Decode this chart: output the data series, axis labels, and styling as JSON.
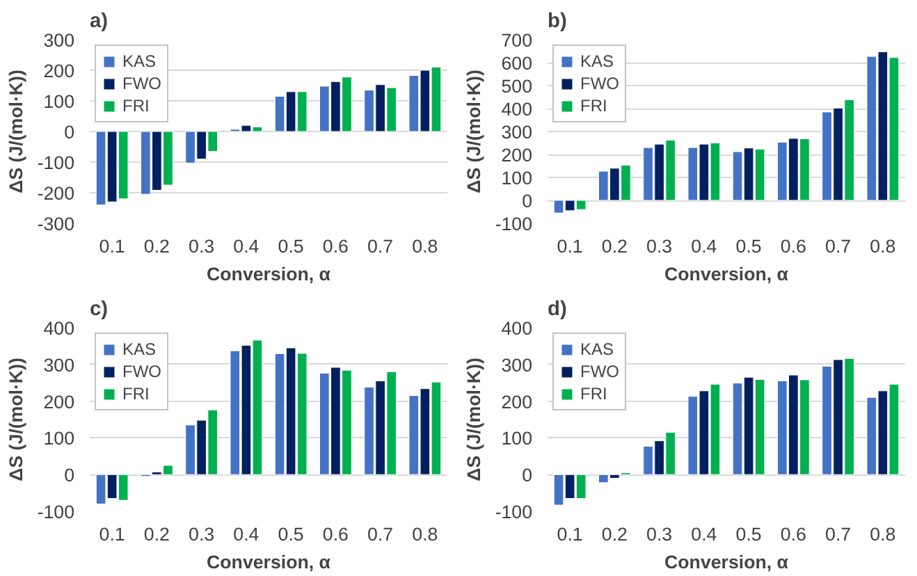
{
  "chart_data": [
    {
      "type": "bar",
      "title": "a)",
      "xlabel": "Conversion, α",
      "ylabel": "ΔS (J/(mol·K))",
      "categories": [
        "0.1",
        "0.2",
        "0.3",
        "0.4",
        "0.5",
        "0.6",
        "0.7",
        "0.8"
      ],
      "ylim": [
        -300,
        300
      ],
      "yticks": [
        -300,
        -200,
        -100,
        0,
        100,
        200,
        300
      ],
      "grid": "y",
      "legend": "top left",
      "series": [
        {
          "name": "KAS",
          "color": "#4472c4",
          "values": [
            -240,
            -205,
            -103,
            7,
            115,
            148,
            135,
            183
          ]
        },
        {
          "name": "FWO",
          "color": "#002060",
          "values": [
            -230,
            -192,
            -90,
            20,
            130,
            163,
            153,
            200
          ]
        },
        {
          "name": "FRI",
          "color": "#00b050",
          "values": [
            -220,
            -175,
            -65,
            15,
            130,
            178,
            143,
            210
          ]
        }
      ]
    },
    {
      "type": "bar",
      "title": "b)",
      "xlabel": "Conversion, α",
      "ylabel": "ΔS (J/(mol·K))",
      "categories": [
        "0.1",
        "0.2",
        "0.3",
        "0.4",
        "0.5",
        "0.6",
        "0.7",
        "0.8"
      ],
      "ylim": [
        -100,
        700
      ],
      "yticks": [
        -100,
        0,
        100,
        200,
        300,
        400,
        500,
        600,
        700
      ],
      "grid": "y",
      "legend": "top left",
      "series": [
        {
          "name": "KAS",
          "color": "#4472c4",
          "values": [
            -55,
            127,
            230,
            230,
            212,
            253,
            385,
            627
          ]
        },
        {
          "name": "FWO",
          "color": "#002060",
          "values": [
            -45,
            140,
            245,
            245,
            228,
            270,
            402,
            647
          ]
        },
        {
          "name": "FRI",
          "color": "#00b050",
          "values": [
            -40,
            153,
            262,
            250,
            223,
            268,
            438,
            622
          ]
        }
      ]
    },
    {
      "type": "bar",
      "title": "c)",
      "xlabel": "Conversion, α",
      "ylabel": "ΔS (J/(mol·K))",
      "categories": [
        "0.1",
        "0.2",
        "0.3",
        "0.4",
        "0.5",
        "0.6",
        "0.7",
        "0.8"
      ],
      "ylim": [
        -100,
        400
      ],
      "yticks": [
        -100,
        0,
        100,
        200,
        300,
        400
      ],
      "grid": "y",
      "legend": "top left",
      "series": [
        {
          "name": "KAS",
          "color": "#4472c4",
          "values": [
            -80,
            -5,
            135,
            337,
            329,
            276,
            238,
            215
          ]
        },
        {
          "name": "FWO",
          "color": "#002060",
          "values": [
            -65,
            7,
            148,
            352,
            345,
            292,
            255,
            234
          ]
        },
        {
          "name": "FRI",
          "color": "#00b050",
          "values": [
            -70,
            25,
            176,
            366,
            330,
            284,
            280,
            252
          ]
        }
      ]
    },
    {
      "type": "bar",
      "title": "d)",
      "xlabel": "Conversion, α",
      "ylabel": "ΔS (J/(mol·K))",
      "categories": [
        "0.1",
        "0.2",
        "0.3",
        "0.4",
        "0.5",
        "0.6",
        "0.7",
        "0.8"
      ],
      "ylim": [
        -100,
        400
      ],
      "yticks": [
        -100,
        0,
        100,
        200,
        300,
        400
      ],
      "grid": "y",
      "legend": "top left",
      "series": [
        {
          "name": "KAS",
          "color": "#4472c4",
          "values": [
            -83,
            -22,
            77,
            213,
            249,
            255,
            295,
            210
          ]
        },
        {
          "name": "FWO",
          "color": "#002060",
          "values": [
            -65,
            -10,
            92,
            228,
            265,
            271,
            313,
            228
          ]
        },
        {
          "name": "FRI",
          "color": "#00b050",
          "values": [
            -65,
            5,
            115,
            246,
            259,
            258,
            316,
            246
          ]
        }
      ]
    }
  ]
}
